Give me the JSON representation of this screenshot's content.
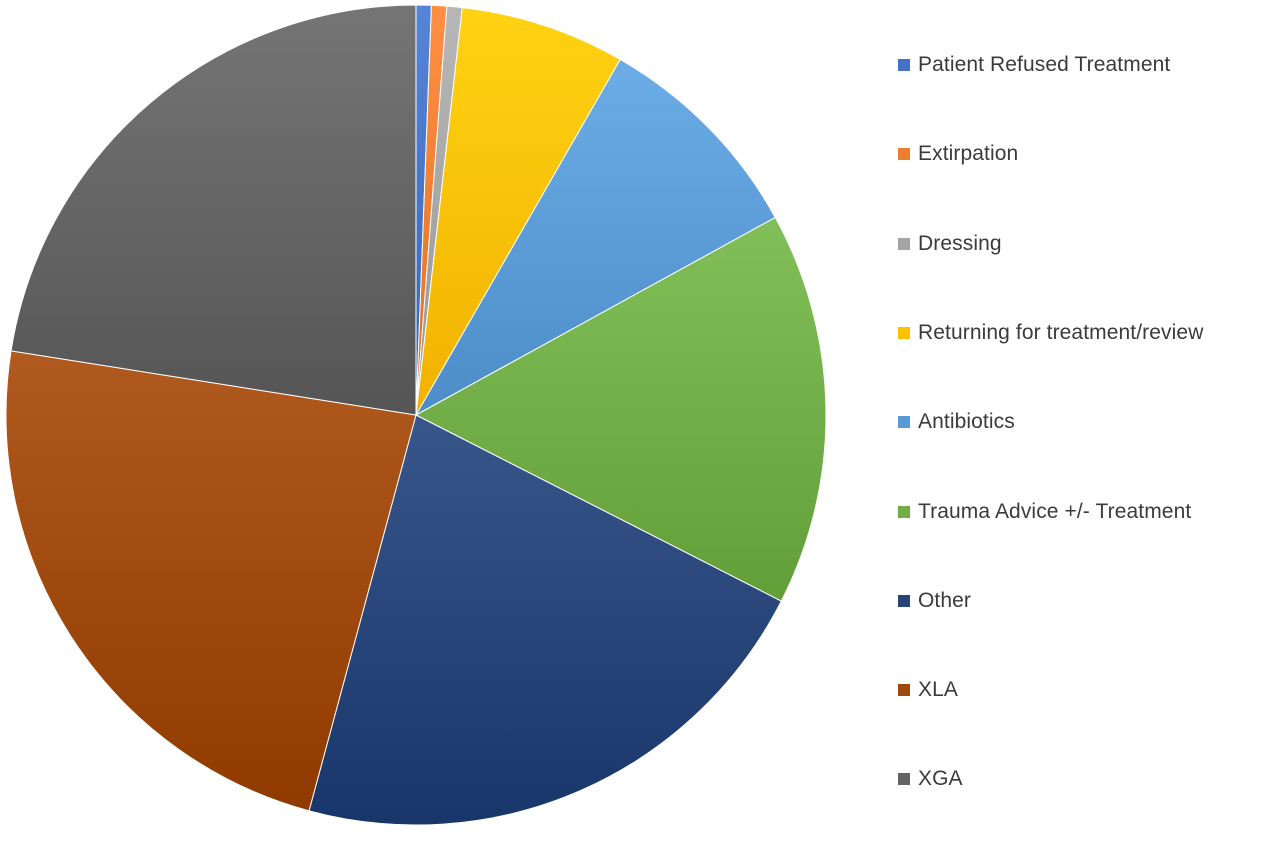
{
  "chart_data": {
    "type": "pie",
    "legend_position": "right",
    "start_angle_deg": 0,
    "direction": "clockwise",
    "series": [
      {
        "categories": [
          "Patient Refused Treatment",
          "Extirpation",
          "Dressing",
          "Returning for treatment/review",
          "Antibiotics",
          "Trauma Advice +/- Treatment",
          "Other",
          "XLA",
          "XGA"
        ],
        "values": [
          0.6,
          0.6,
          0.6,
          6.5,
          8.7,
          15.5,
          21.7,
          23.3,
          22.5
        ]
      }
    ],
    "colors": [
      "#4472C4",
      "#ED7D31",
      "#A5A5A5",
      "#FFC000",
      "#5B9BD5",
      "#70AD47",
      "#264478",
      "#9E480E",
      "#636363"
    ]
  }
}
